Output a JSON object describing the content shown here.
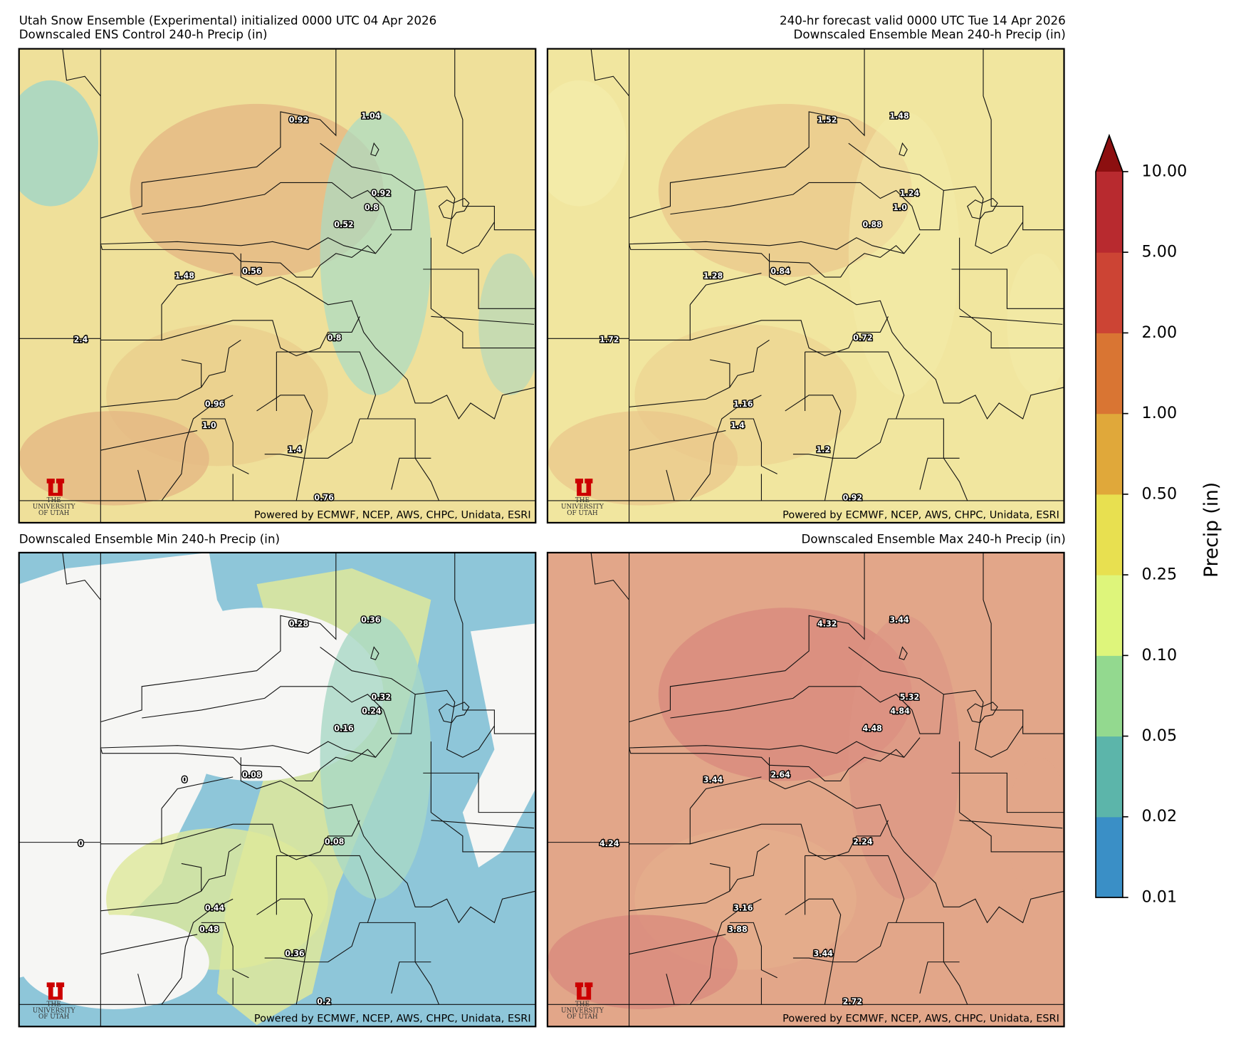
{
  "panels": [
    {
      "title_lines": [
        "Utah Snow Ensemble (Experimental) initialized 0000 UTC 04 Apr 2026",
        "Downscaled ENS Control 240-h Precip (in)"
      ],
      "labels": [
        "0.92",
        "1.04",
        "0.92",
        "0.8",
        "0.52",
        "0.56",
        "1.48",
        "2.4",
        "0.8",
        "0.96",
        "1.0",
        "1.4",
        "0.76"
      ]
    },
    {
      "title_lines": [
        "240-hr forecast valid 0000 UTC Tue 14 Apr 2026",
        "Downscaled Ensemble Mean 240-h Precip (in)"
      ],
      "labels": [
        "1.52",
        "1.48",
        "1.24",
        "1.0",
        "0.88",
        "0.84",
        "1.28",
        "1.72",
        "0.72",
        "1.16",
        "1.4",
        "1.2",
        "0.92"
      ]
    },
    {
      "title_lines": [
        "Downscaled Ensemble Min 240-h Precip (in)"
      ],
      "labels": [
        "0.28",
        "0.36",
        "0.32",
        "0.24",
        "0.16",
        "0.08",
        "0",
        "0",
        "0.08",
        "0.44",
        "0.48",
        "0.36",
        "0.2"
      ]
    },
    {
      "title_lines": [
        "Downscaled Ensemble Max 240-h Precip (in)"
      ],
      "labels": [
        "4.32",
        "3.44",
        "5.32",
        "4.84",
        "4.48",
        "2.64",
        "3.44",
        "4.24",
        "2.24",
        "3.16",
        "3.88",
        "3.44",
        "2.72"
      ]
    }
  ],
  "footer": "Powered by ECMWF, NCEP, AWS, CHPC, Unidata, ESRI",
  "logo": {
    "line1": "THE",
    "line2": "UNIVERSITY",
    "line3": "OF UTAH"
  },
  "colorbar": {
    "label": "Precip (in)",
    "ticks": [
      {
        "value": 0.01,
        "label": "0.01"
      },
      {
        "value": 0.02,
        "label": "0.02"
      },
      {
        "value": 0.05,
        "label": "0.05"
      },
      {
        "value": 0.1,
        "label": "0.10"
      },
      {
        "value": 0.25,
        "label": "0.25"
      },
      {
        "value": 0.5,
        "label": "0.50"
      },
      {
        "value": 1,
        "label": "1.00"
      },
      {
        "value": 2,
        "label": "2.00"
      },
      {
        "value": 5,
        "label": "5.00"
      },
      {
        "value": 10,
        "label": "10.00"
      }
    ],
    "colors": [
      "#3a8fc6",
      "#5cb5aa",
      "#93d98f",
      "#def57b",
      "#e8e050",
      "#e0a83a",
      "#d97533",
      "#cc4434",
      "#b82a2f"
    ],
    "extend_color": "#8c0f10"
  }
}
